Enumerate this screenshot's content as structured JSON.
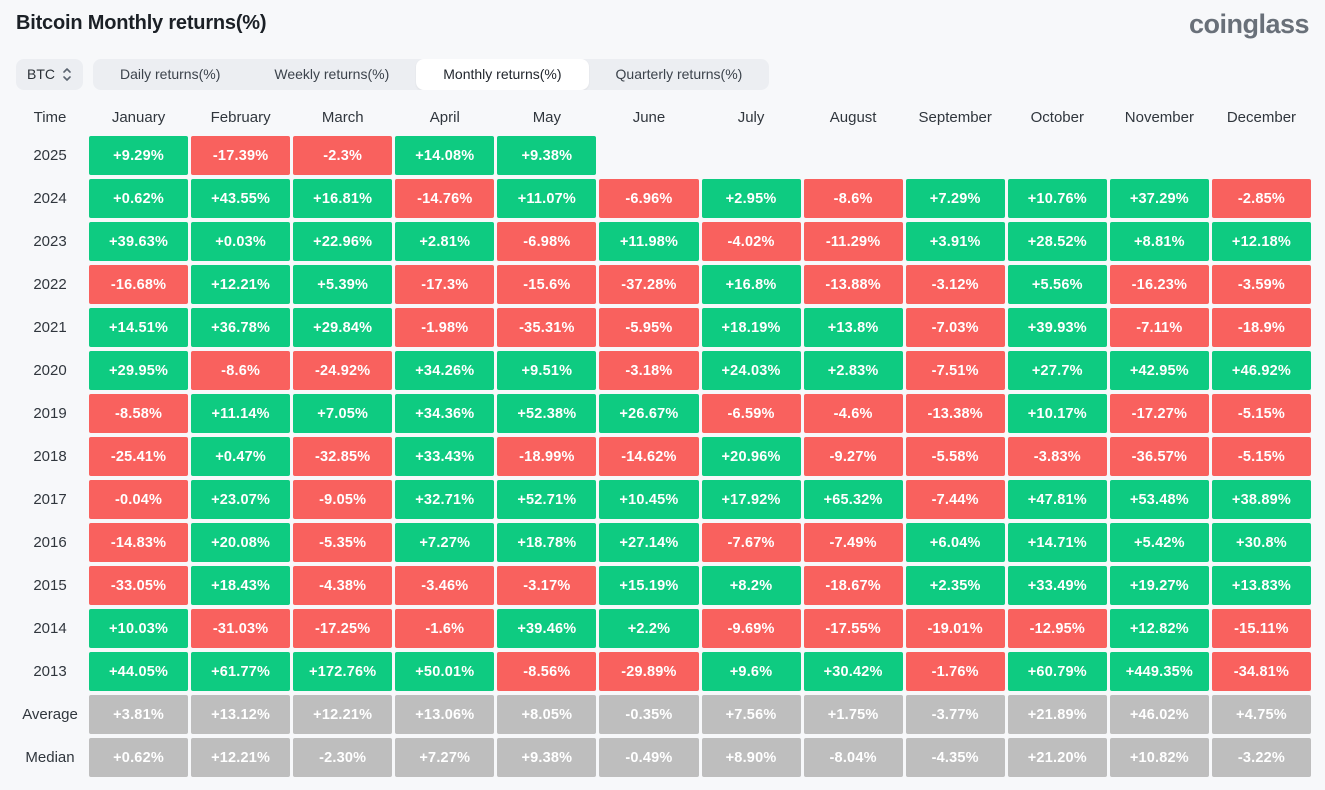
{
  "header": {
    "title": "Bitcoin Monthly returns(%)",
    "logo_text": "coinglass"
  },
  "controls": {
    "coin_selected": "BTC",
    "tabs": [
      {
        "name": "daily",
        "label": "Daily returns(%)",
        "active": false
      },
      {
        "name": "weekly",
        "label": "Weekly returns(%)",
        "active": false
      },
      {
        "name": "monthly",
        "label": "Monthly returns(%)",
        "active": true
      },
      {
        "name": "quarterly",
        "label": "Quarterly returns(%)",
        "active": false
      }
    ]
  },
  "colors": {
    "positive": "#0ECB81",
    "negative": "#F9615E",
    "summary": "#BEBEBE"
  },
  "chart_data": {
    "type": "heatmap",
    "title": "Bitcoin Monthly returns(%)",
    "row_header": "Time",
    "columns": [
      "January",
      "February",
      "March",
      "April",
      "May",
      "June",
      "July",
      "August",
      "September",
      "October",
      "November",
      "December"
    ],
    "color_rule": "positive values green, negative values red; Average/Median rows gray",
    "rows": [
      {
        "label": "2025",
        "kind": "year",
        "values": [
          "+9.29%",
          "-17.39%",
          "-2.3%",
          "+14.08%",
          "+9.38%",
          "",
          "",
          "",
          "",
          "",
          "",
          ""
        ]
      },
      {
        "label": "2024",
        "kind": "year",
        "values": [
          "+0.62%",
          "+43.55%",
          "+16.81%",
          "-14.76%",
          "+11.07%",
          "-6.96%",
          "+2.95%",
          "-8.6%",
          "+7.29%",
          "+10.76%",
          "+37.29%",
          "-2.85%"
        ]
      },
      {
        "label": "2023",
        "kind": "year",
        "values": [
          "+39.63%",
          "+0.03%",
          "+22.96%",
          "+2.81%",
          "-6.98%",
          "+11.98%",
          "-4.02%",
          "-11.29%",
          "+3.91%",
          "+28.52%",
          "+8.81%",
          "+12.18%"
        ]
      },
      {
        "label": "2022",
        "kind": "year",
        "values": [
          "-16.68%",
          "+12.21%",
          "+5.39%",
          "-17.3%",
          "-15.6%",
          "-37.28%",
          "+16.8%",
          "-13.88%",
          "-3.12%",
          "+5.56%",
          "-16.23%",
          "-3.59%"
        ]
      },
      {
        "label": "2021",
        "kind": "year",
        "values": [
          "+14.51%",
          "+36.78%",
          "+29.84%",
          "-1.98%",
          "-35.31%",
          "-5.95%",
          "+18.19%",
          "+13.8%",
          "-7.03%",
          "+39.93%",
          "-7.11%",
          "-18.9%"
        ]
      },
      {
        "label": "2020",
        "kind": "year",
        "values": [
          "+29.95%",
          "-8.6%",
          "-24.92%",
          "+34.26%",
          "+9.51%",
          "-3.18%",
          "+24.03%",
          "+2.83%",
          "-7.51%",
          "+27.7%",
          "+42.95%",
          "+46.92%"
        ]
      },
      {
        "label": "2019",
        "kind": "year",
        "values": [
          "-8.58%",
          "+11.14%",
          "+7.05%",
          "+34.36%",
          "+52.38%",
          "+26.67%",
          "-6.59%",
          "-4.6%",
          "-13.38%",
          "+10.17%",
          "-17.27%",
          "-5.15%"
        ]
      },
      {
        "label": "2018",
        "kind": "year",
        "values": [
          "-25.41%",
          "+0.47%",
          "-32.85%",
          "+33.43%",
          "-18.99%",
          "-14.62%",
          "+20.96%",
          "-9.27%",
          "-5.58%",
          "-3.83%",
          "-36.57%",
          "-5.15%"
        ]
      },
      {
        "label": "2017",
        "kind": "year",
        "values": [
          "-0.04%",
          "+23.07%",
          "-9.05%",
          "+32.71%",
          "+52.71%",
          "+10.45%",
          "+17.92%",
          "+65.32%",
          "-7.44%",
          "+47.81%",
          "+53.48%",
          "+38.89%"
        ]
      },
      {
        "label": "2016",
        "kind": "year",
        "values": [
          "-14.83%",
          "+20.08%",
          "-5.35%",
          "+7.27%",
          "+18.78%",
          "+27.14%",
          "-7.67%",
          "-7.49%",
          "+6.04%",
          "+14.71%",
          "+5.42%",
          "+30.8%"
        ]
      },
      {
        "label": "2015",
        "kind": "year",
        "values": [
          "-33.05%",
          "+18.43%",
          "-4.38%",
          "-3.46%",
          "-3.17%",
          "+15.19%",
          "+8.2%",
          "-18.67%",
          "+2.35%",
          "+33.49%",
          "+19.27%",
          "+13.83%"
        ]
      },
      {
        "label": "2014",
        "kind": "year",
        "values": [
          "+10.03%",
          "-31.03%",
          "-17.25%",
          "-1.6%",
          "+39.46%",
          "+2.2%",
          "-9.69%",
          "-17.55%",
          "-19.01%",
          "-12.95%",
          "+12.82%",
          "-15.11%"
        ]
      },
      {
        "label": "2013",
        "kind": "year",
        "values": [
          "+44.05%",
          "+61.77%",
          "+172.76%",
          "+50.01%",
          "-8.56%",
          "-29.89%",
          "+9.6%",
          "+30.42%",
          "-1.76%",
          "+60.79%",
          "+449.35%",
          "-34.81%"
        ]
      },
      {
        "label": "Average",
        "kind": "summary",
        "values": [
          "+3.81%",
          "+13.12%",
          "+12.21%",
          "+13.06%",
          "+8.05%",
          "-0.35%",
          "+7.56%",
          "+1.75%",
          "-3.77%",
          "+21.89%",
          "+46.02%",
          "+4.75%"
        ]
      },
      {
        "label": "Median",
        "kind": "summary",
        "values": [
          "+0.62%",
          "+12.21%",
          "-2.30%",
          "+7.27%",
          "+9.38%",
          "-0.49%",
          "+8.90%",
          "-8.04%",
          "-4.35%",
          "+21.20%",
          "+10.82%",
          "-3.22%"
        ]
      }
    ]
  }
}
